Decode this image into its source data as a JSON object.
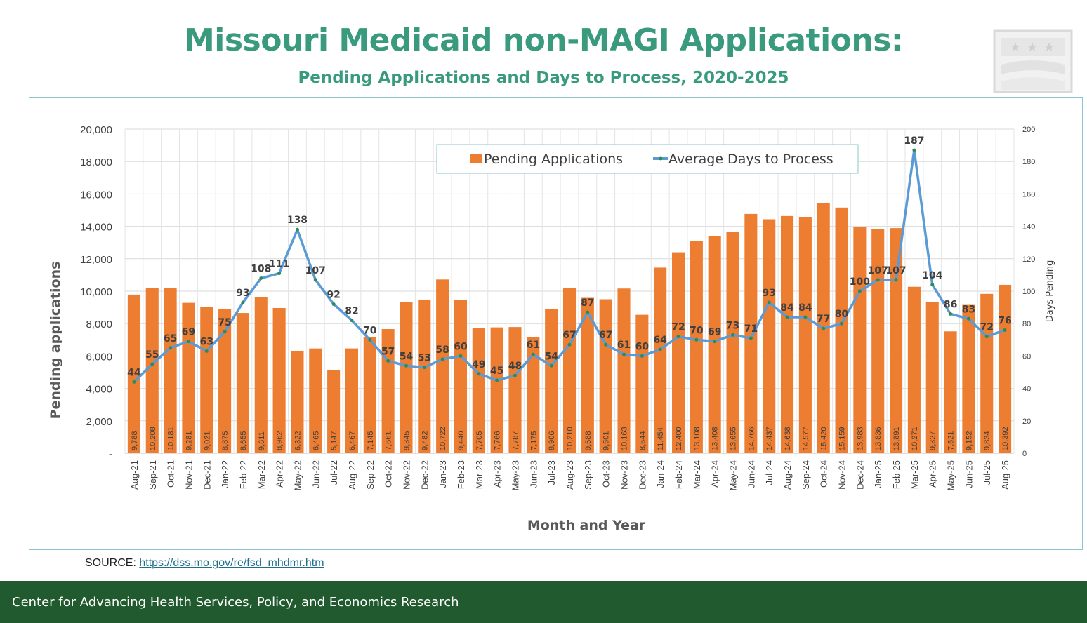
{
  "header": {
    "title": "Missouri Medicaid non-MAGI Applications:",
    "subtitle": "Pending Applications and Days to Process, 2020-2025"
  },
  "source": {
    "label": "SOURCE: ",
    "url_text": "https://dss.mo.gov/re/fsd_mhdmr.htm"
  },
  "footer": {
    "text": "Center for Advancing Health Services, Policy, and Economics Research"
  },
  "colors": {
    "title": "#3a9a7e",
    "bar": "#ed7d31",
    "line": "#5b9bd5",
    "marker": "#2e8b57",
    "footer_bg": "#215a2e"
  },
  "chart_data": {
    "type": "bar",
    "xlabel": "Month and Year",
    "ylabel": "Pending applications",
    "y2label": "Days Pending",
    "ylim": [
      0,
      20000
    ],
    "y2lim": [
      0,
      200
    ],
    "yticks": [
      "-",
      "2,000",
      "4,000",
      "6,000",
      "8,000",
      "10,000",
      "12,000",
      "14,000",
      "16,000",
      "18,000",
      "20,000"
    ],
    "y2ticks": [
      "0",
      "20",
      "40",
      "60",
      "80",
      "100",
      "120",
      "140",
      "160",
      "180",
      "200"
    ],
    "legend_position": "top-center",
    "grid": true,
    "categories": [
      "Aug-21",
      "Sep-21",
      "Oct-21",
      "Nov-21",
      "Dec-21",
      "Jan-22",
      "Feb-22",
      "Mar-22",
      "Apr-22",
      "May-22",
      "Jun-22",
      "Jul-22",
      "Aug-22",
      "Sep-22",
      "Oct-22",
      "Nov-22",
      "Dec-22",
      "Jan-23",
      "Feb-23",
      "Mar-23",
      "Apr-23",
      "May-23",
      "Jun-23",
      "Jul-23",
      "Aug-23",
      "Sep-23",
      "Oct-23",
      "Nov-23",
      "Dec-23",
      "Jan-24",
      "Feb-24",
      "Mar-24",
      "Apr-24",
      "May-24",
      "Jun-24",
      "Jul-24",
      "Aug-24",
      "Sep-24",
      "Oct-24",
      "Nov-24",
      "Dec-24",
      "Jan-25",
      "Feb-25",
      "Mar-25",
      "Apr-25",
      "May-25",
      "Jun-25",
      "Jul-25",
      "Aug-25"
    ],
    "series": [
      {
        "name": "Pending Applications",
        "type": "bar",
        "axis": "left",
        "values": [
          9788,
          10208,
          10181,
          9281,
          9021,
          8875,
          8655,
          9611,
          8962,
          6322,
          6465,
          5147,
          6467,
          7145,
          7661,
          9345,
          9482,
          10722,
          9440,
          7705,
          7766,
          7787,
          7175,
          8906,
          10210,
          9588,
          9501,
          10163,
          8544,
          11454,
          12400,
          13108,
          13408,
          13655,
          14766,
          14437,
          14638,
          14577,
          15420,
          15159,
          13983,
          13836,
          13891,
          10271,
          9327,
          7521,
          9152,
          9834,
          10392
        ],
        "labels": [
          "9,788",
          "10,208",
          "10,181",
          "9,281",
          "9,021",
          "8,875",
          "8,655",
          "9,611",
          "8,962",
          "6,322",
          "6,465",
          "5,147",
          "6,467",
          "7,145",
          "7,661",
          "9,345",
          "9,482",
          "10,722",
          "9,440",
          "7,705",
          "7,766",
          "7,787",
          "7,175",
          "8,906",
          "10,210",
          "9,588",
          "9,501",
          "10,163",
          "8,544",
          "11,454",
          "12,400",
          "13,108",
          "13,408",
          "13,655",
          "14,766",
          "14,437",
          "14,638",
          "14,577",
          "15,420",
          "15,159",
          "13,983",
          "13,836",
          "13,891",
          "10,271",
          "9,327",
          "7,521",
          "9,152",
          "9,834",
          "10,392"
        ]
      },
      {
        "name": "Average Days to Process",
        "type": "line",
        "axis": "right",
        "values": [
          44,
          55,
          65,
          69,
          63,
          75,
          93,
          108,
          111,
          138,
          107,
          92,
          82,
          70,
          57,
          54,
          53,
          58,
          60,
          49,
          45,
          48,
          61,
          54,
          67,
          87,
          67,
          61,
          60,
          64,
          72,
          70,
          69,
          73,
          71,
          93,
          84,
          84,
          77,
          80,
          100,
          107,
          107,
          187,
          104,
          86,
          83,
          72,
          76
        ]
      }
    ]
  }
}
